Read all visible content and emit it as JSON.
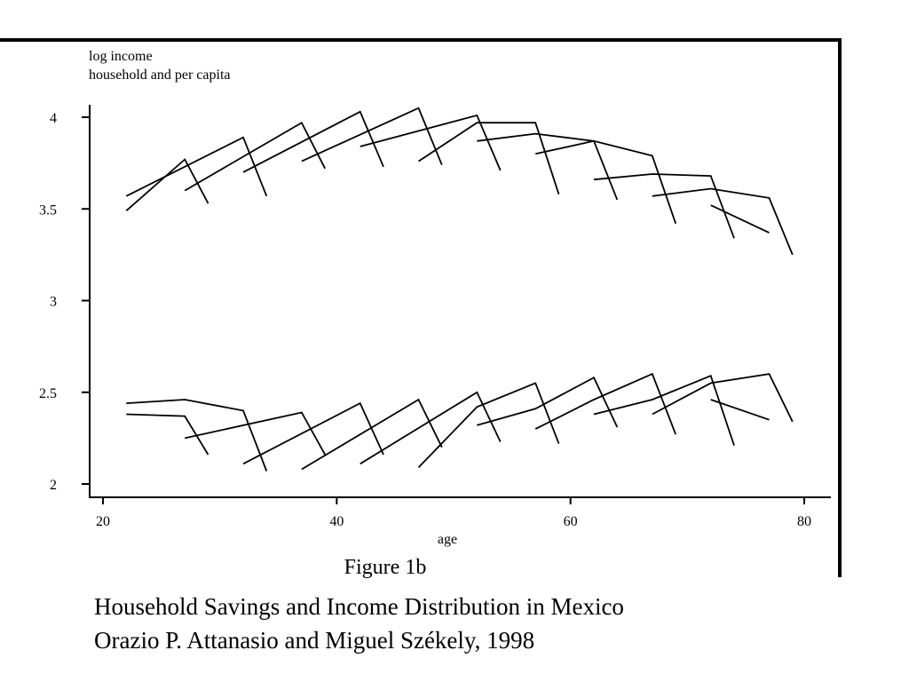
{
  "chart_data": {
    "type": "line",
    "ylabel_line1": "log income",
    "ylabel_line2": "household and per capita",
    "xlabel": "age",
    "xlim": [
      20,
      81
    ],
    "ylim": [
      2,
      4.1
    ],
    "xticks": [
      "20",
      "40",
      "60",
      "80"
    ],
    "yticks": [
      "2",
      "2.5",
      "3",
      "3.5",
      "4"
    ],
    "figure_label": "Figure 1b",
    "cohorts": [
      {
        "x": [
          22,
          27,
          29
        ],
        "y": [
          3.49,
          3.77,
          3.53
        ]
      },
      {
        "x": [
          22,
          32,
          34
        ],
        "y": [
          3.57,
          3.89,
          3.57
        ]
      },
      {
        "x": [
          27,
          37,
          39
        ],
        "y": [
          3.6,
          3.97,
          3.72
        ]
      },
      {
        "x": [
          32,
          42,
          44
        ],
        "y": [
          3.7,
          4.03,
          3.73
        ]
      },
      {
        "x": [
          37,
          47,
          49
        ],
        "y": [
          3.76,
          4.05,
          3.74
        ]
      },
      {
        "x": [
          42,
          52,
          54
        ],
        "y": [
          3.84,
          4.01,
          3.71
        ]
      },
      {
        "x": [
          47,
          52,
          57,
          59
        ],
        "y": [
          3.76,
          3.97,
          3.97,
          3.58
        ]
      },
      {
        "x": [
          52,
          57,
          62,
          64
        ],
        "y": [
          3.87,
          3.91,
          3.87,
          3.55
        ]
      },
      {
        "x": [
          57,
          62,
          67,
          69
        ],
        "y": [
          3.8,
          3.87,
          3.79,
          3.42
        ]
      },
      {
        "x": [
          62,
          67,
          72,
          74
        ],
        "y": [
          3.66,
          3.69,
          3.68,
          3.34
        ]
      },
      {
        "x": [
          67,
          72,
          77,
          79
        ],
        "y": [
          3.57,
          3.61,
          3.56,
          3.25
        ]
      },
      {
        "x": [
          72,
          77
        ],
        "y": [
          3.52,
          3.37
        ]
      },
      {
        "x": [
          22,
          27,
          29
        ],
        "y": [
          2.38,
          2.37,
          2.16
        ]
      },
      {
        "x": [
          22,
          27,
          32,
          34
        ],
        "y": [
          2.44,
          2.46,
          2.4,
          2.07
        ]
      },
      {
        "x": [
          27,
          37,
          39
        ],
        "y": [
          2.25,
          2.39,
          2.16
        ]
      },
      {
        "x": [
          32,
          42,
          44
        ],
        "y": [
          2.11,
          2.44,
          2.16
        ]
      },
      {
        "x": [
          37,
          47,
          49
        ],
        "y": [
          2.08,
          2.46,
          2.2
        ]
      },
      {
        "x": [
          42,
          52,
          54
        ],
        "y": [
          2.11,
          2.5,
          2.23
        ]
      },
      {
        "x": [
          47,
          52,
          57,
          59
        ],
        "y": [
          2.09,
          2.42,
          2.55,
          2.22
        ]
      },
      {
        "x": [
          52,
          57,
          62,
          64
        ],
        "y": [
          2.32,
          2.41,
          2.58,
          2.31
        ]
      },
      {
        "x": [
          57,
          62,
          67,
          69
        ],
        "y": [
          2.3,
          2.46,
          2.6,
          2.27
        ]
      },
      {
        "x": [
          62,
          67,
          72,
          74
        ],
        "y": [
          2.38,
          2.46,
          2.59,
          2.21
        ]
      },
      {
        "x": [
          67,
          72,
          77,
          79
        ],
        "y": [
          2.38,
          2.55,
          2.6,
          2.34
        ]
      },
      {
        "x": [
          72,
          77
        ],
        "y": [
          2.46,
          2.35
        ]
      }
    ]
  },
  "caption": {
    "line1": "Household Savings and Income Distribution in Mexico",
    "line2": "Orazio P. Attanasio and Miguel Székely, 1998"
  }
}
